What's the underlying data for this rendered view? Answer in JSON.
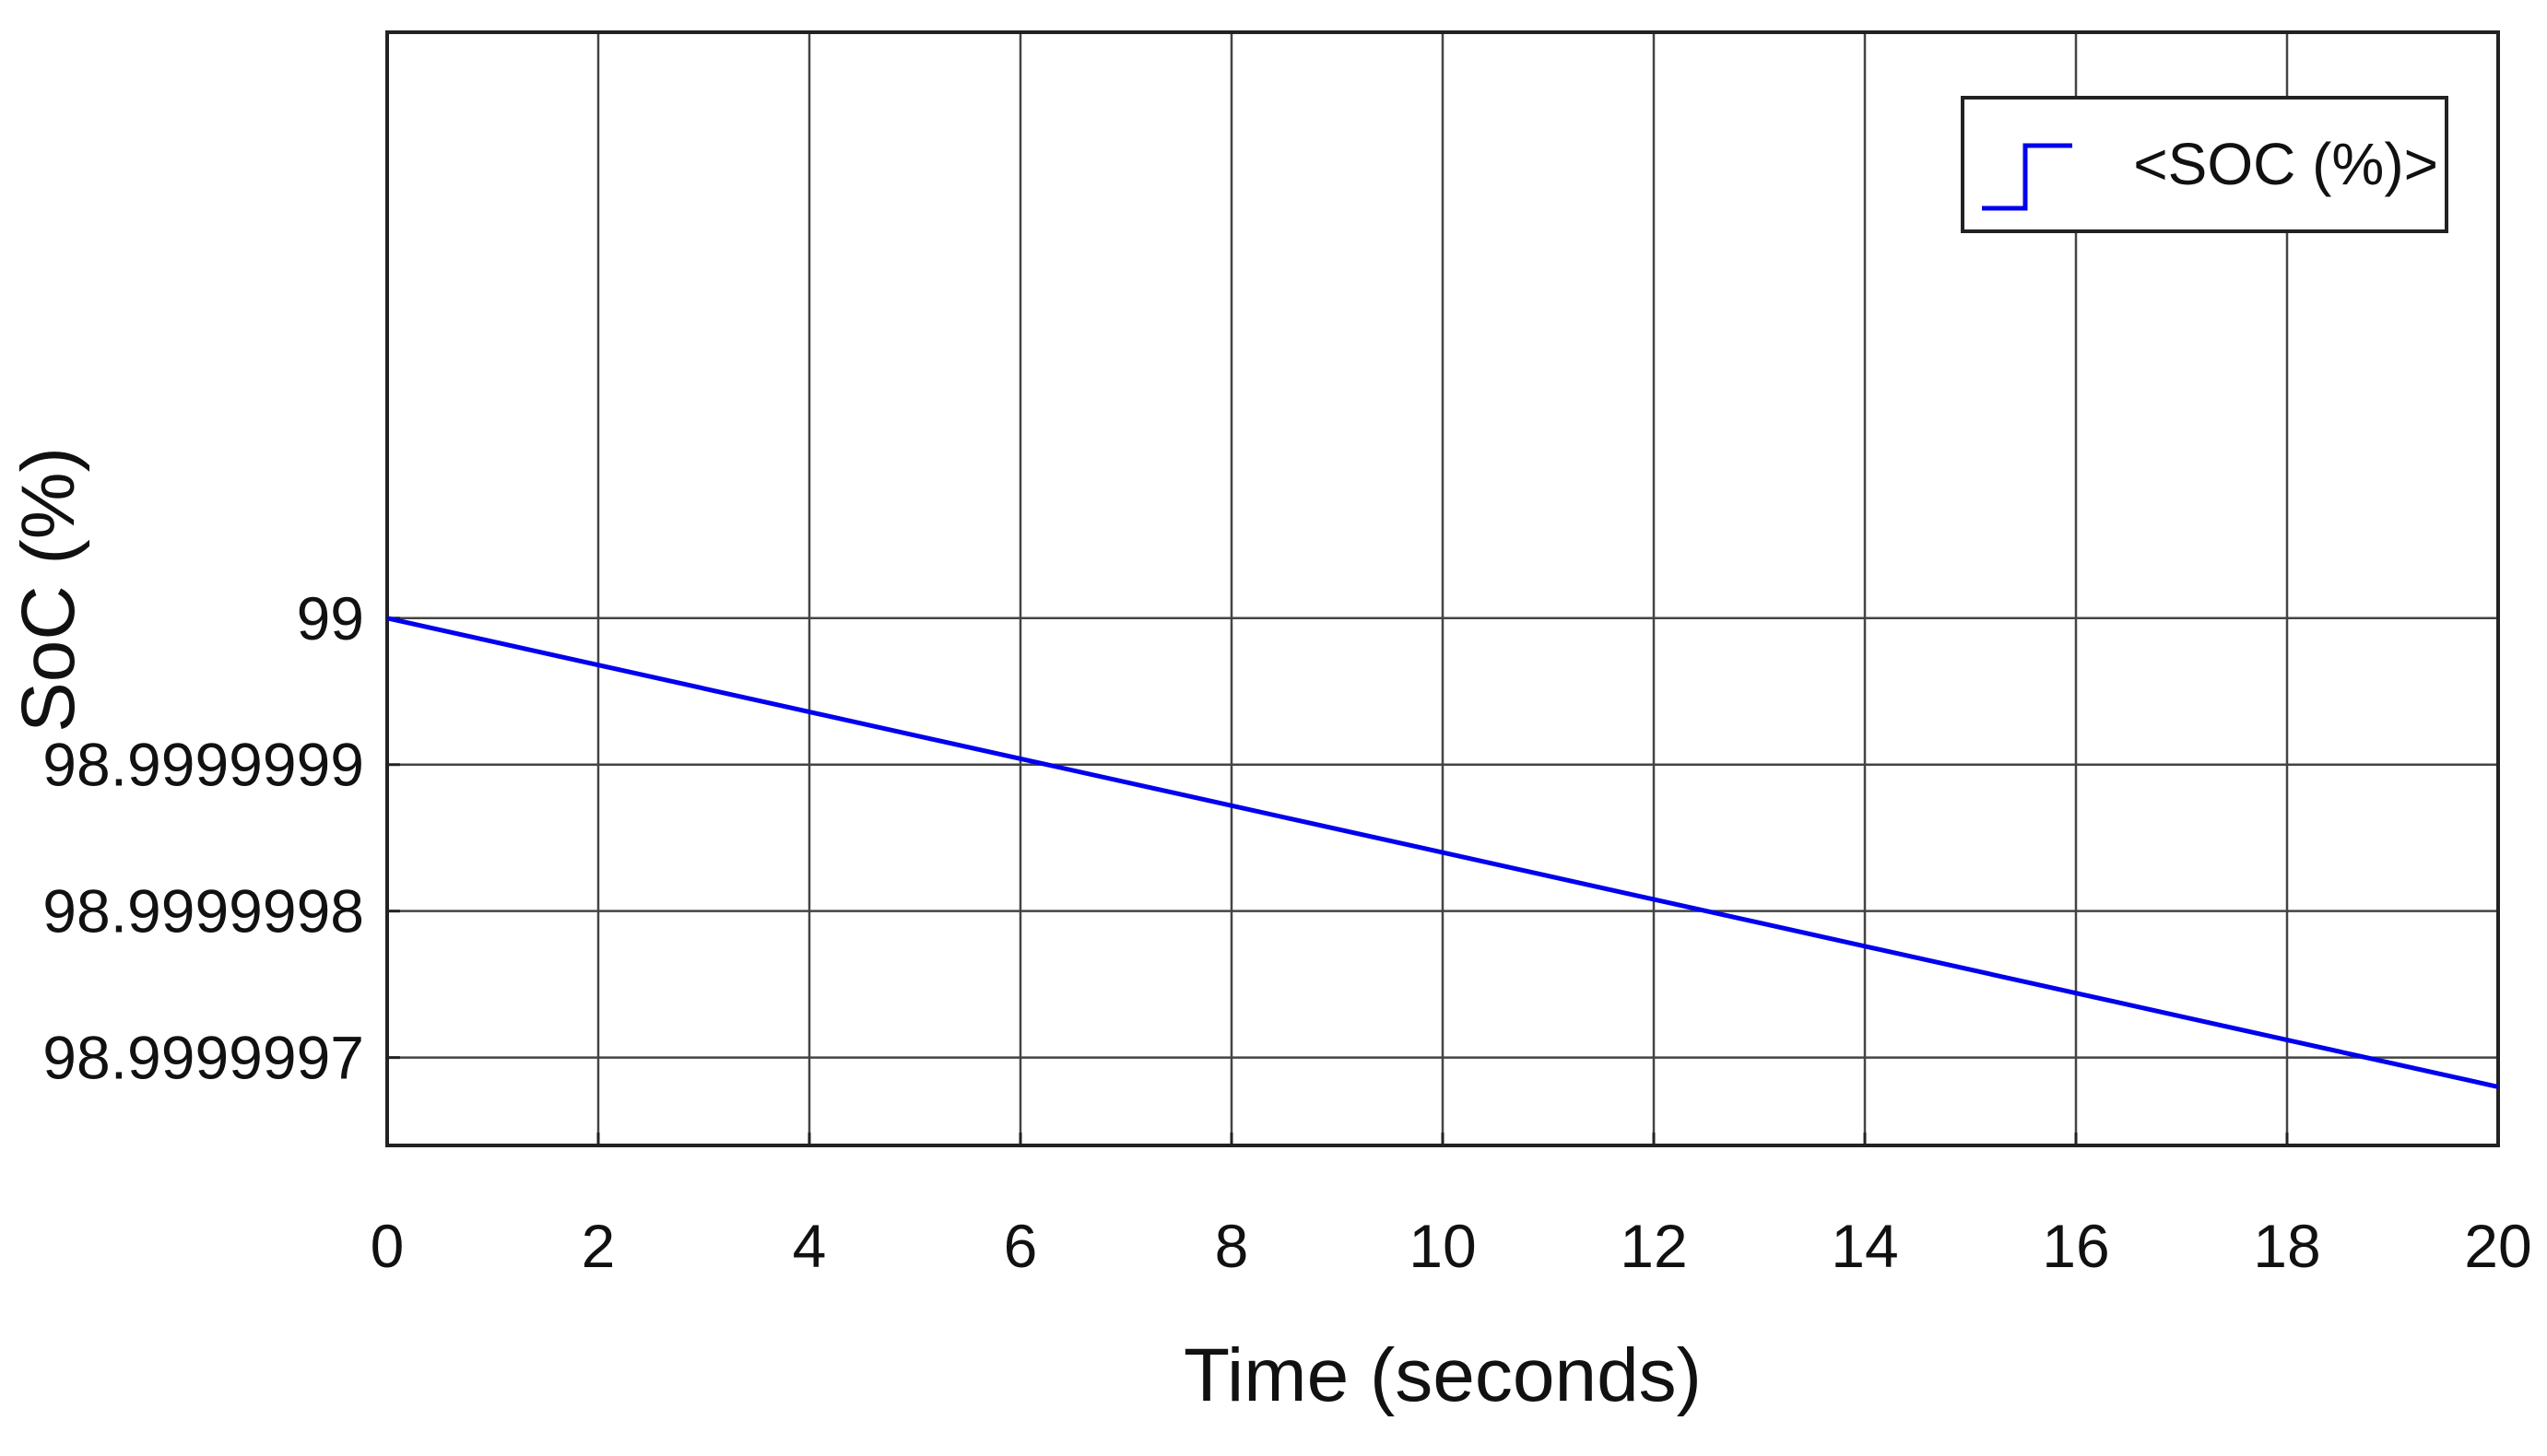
{
  "chart_data": {
    "type": "line",
    "title": "",
    "xlabel": "Time (seconds)",
    "ylabel": "SoC (%)",
    "xlim": [
      0,
      20
    ],
    "ylim": [
      98.99999964,
      99.0000004
    ],
    "x_ticks": [
      0,
      2,
      4,
      6,
      8,
      10,
      12,
      14,
      16,
      18,
      20
    ],
    "x_tick_labels": [
      "0",
      "2",
      "4",
      "6",
      "8",
      "10",
      "12",
      "14",
      "16",
      "18",
      "20"
    ],
    "y_ticks": [
      98.9999997,
      98.9999998,
      98.9999999,
      99.0
    ],
    "y_tick_labels": [
      "98.9999997",
      "98.9999998",
      "98.9999999",
      "99"
    ],
    "grid": true,
    "legend_position": "top-right",
    "series": [
      {
        "name": "<SOC (%)>",
        "color": "#0000ee",
        "x": [
          0,
          20
        ],
        "y": [
          99.0,
          98.99999968
        ]
      }
    ]
  }
}
